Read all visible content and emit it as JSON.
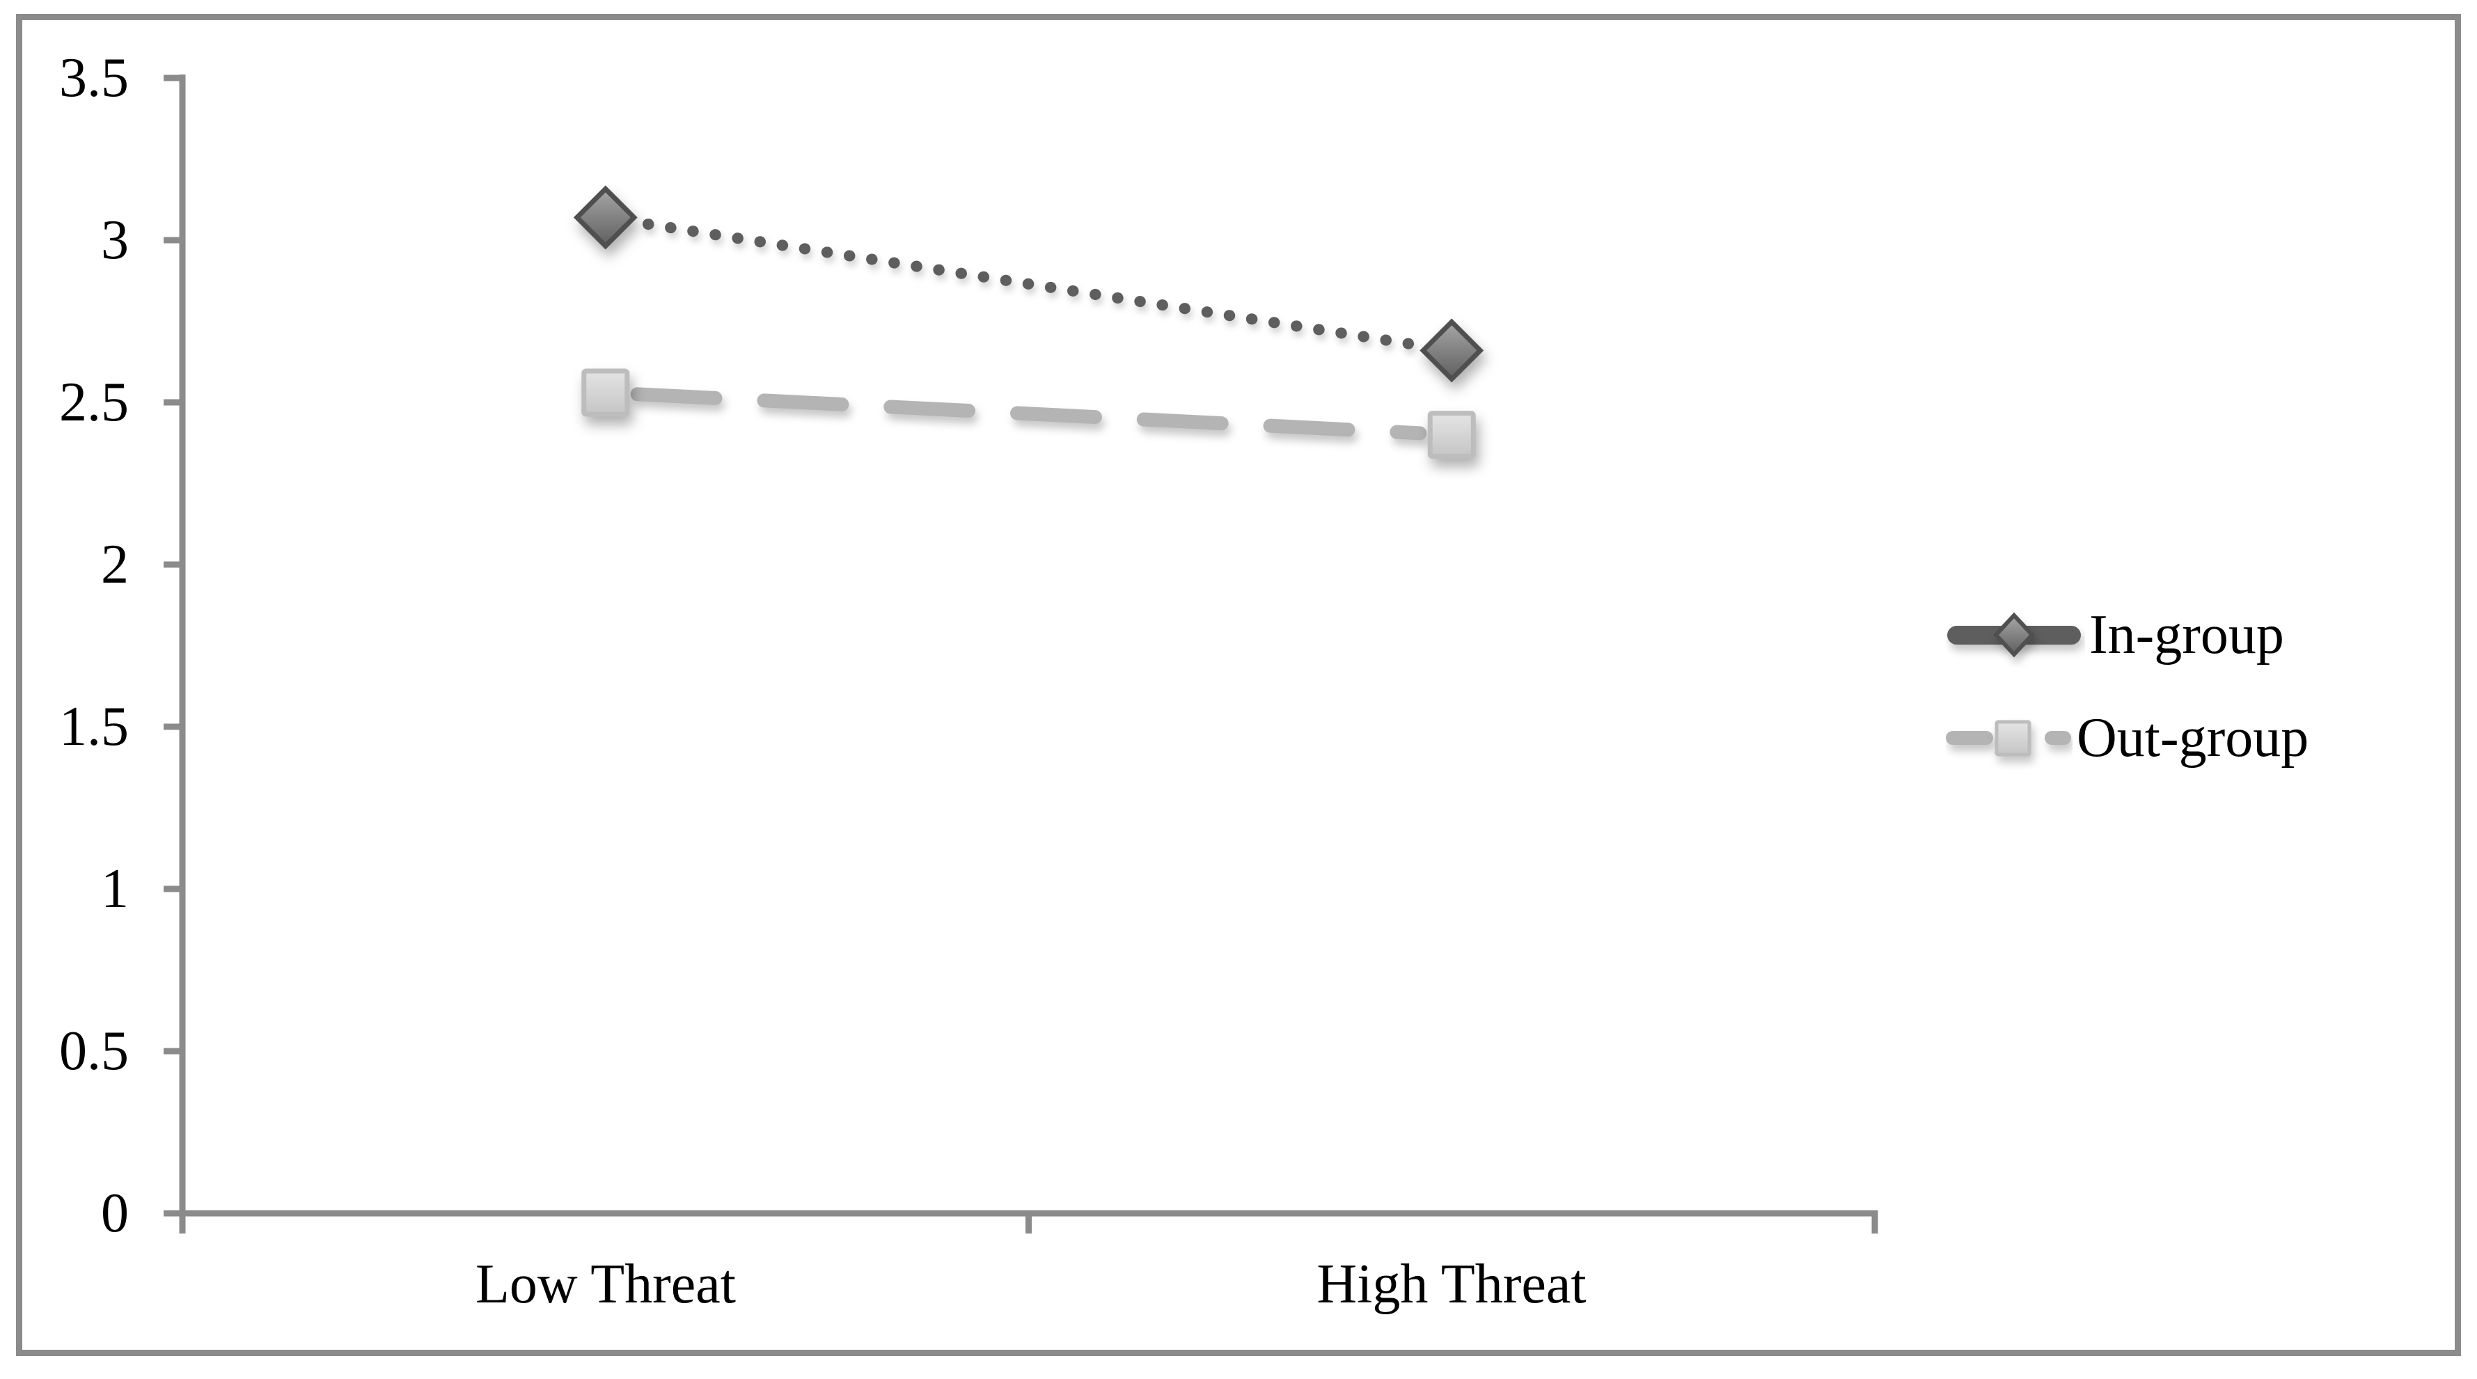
{
  "chart_data": {
    "type": "line",
    "categories": [
      "Low Threat",
      "High Threat"
    ],
    "series": [
      {
        "name": "In-group",
        "values": [
          3.07,
          2.66
        ],
        "marker": "diamond",
        "line_style": "dotted",
        "line_color": "#5e5e5e",
        "marker_border": "#4f4f4f",
        "marker_fill_light": "#a6a6a6",
        "marker_fill_dark": "#5f5f5f"
      },
      {
        "name": "Out-group",
        "values": [
          2.53,
          2.4
        ],
        "marker": "square",
        "line_style": "dashed",
        "line_color": "#b4b4b4",
        "marker_border": "#bdbdbd",
        "marker_fill_light": "#e4e4e4",
        "marker_fill_dark": "#c5c5c5"
      }
    ],
    "y_axis": {
      "min": 0,
      "max": 3.5,
      "step": 0.5,
      "tick_labels": [
        "3.5",
        "3",
        "2.5",
        "2",
        "1.5",
        "1",
        "0.5",
        "0"
      ]
    },
    "x_axis": {
      "tick_labels": [
        "Low Threat",
        "High Threat"
      ]
    },
    "legend": {
      "position": "right",
      "entries": [
        "In-group",
        "Out-group"
      ]
    },
    "grid": false,
    "axis_color": "#8b8b8b",
    "background": "#ffffff"
  },
  "frame": {
    "border_color": "#8b8b8b"
  }
}
